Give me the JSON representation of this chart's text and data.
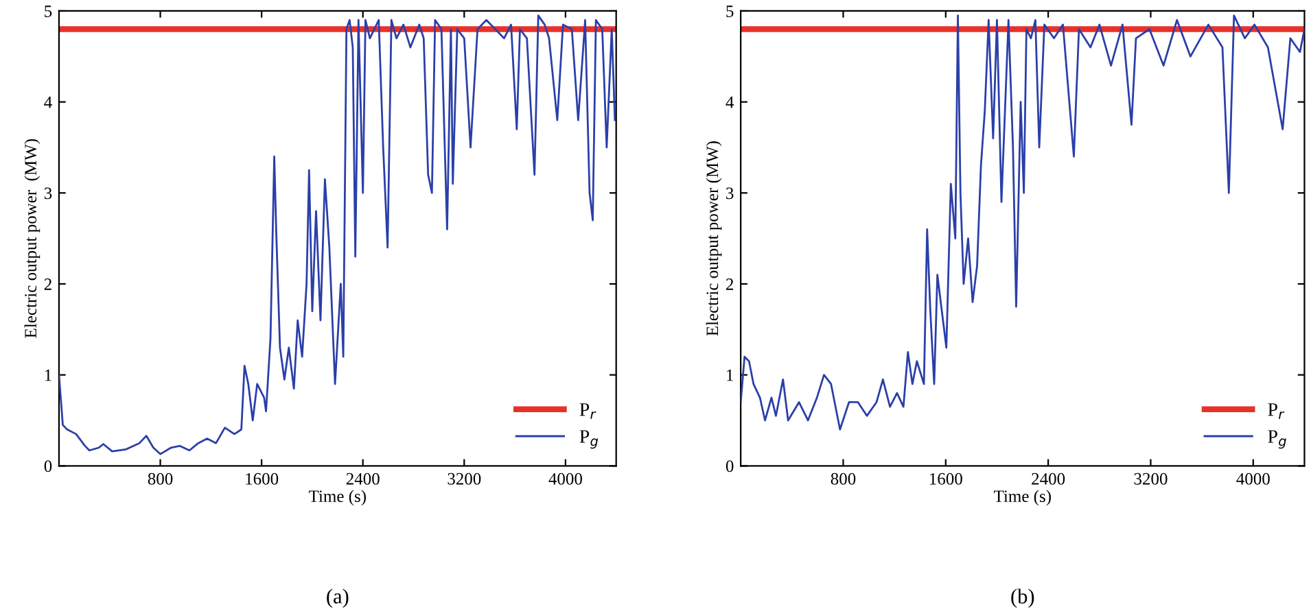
{
  "chart_data": [
    {
      "type": "line",
      "xlabel": "Time (s)",
      "ylabel": "Electric output power  (MW)",
      "annotations": [
        "(a)"
      ],
      "xlim": [
        0,
        4400
      ],
      "ylim": [
        0,
        5
      ],
      "xticks": [
        800,
        1600,
        2400,
        3200,
        4000
      ],
      "yticks": [
        0,
        1,
        2,
        3,
        4,
        5
      ],
      "grid": false,
      "legend": "bottom right",
      "marker": "none",
      "line_style": "solid",
      "series": [
        {
          "name": "P$_{r}$",
          "color": "#e8312a",
          "x": [
            0,
            4400
          ],
          "values": [
            4.8,
            4.8
          ]
        },
        {
          "name": "P$_{g}$",
          "color": "#2b3fa8",
          "x": [
            0,
            30,
            65,
            135,
            205,
            240,
            315,
            350,
            420,
            525,
            635,
            690,
            745,
            800,
            885,
            955,
            1030,
            1100,
            1170,
            1240,
            1310,
            1385,
            1440,
            1465,
            1495,
            1530,
            1565,
            1620,
            1635,
            1670,
            1700,
            1715,
            1745,
            1780,
            1815,
            1855,
            1885,
            1920,
            1955,
            1975,
            2000,
            2030,
            2065,
            2100,
            2135,
            2180,
            2225,
            2245,
            2270,
            2295,
            2320,
            2340,
            2365,
            2400,
            2420,
            2455,
            2525,
            2560,
            2595,
            2625,
            2665,
            2720,
            2775,
            2845,
            2880,
            2915,
            2945,
            2970,
            3020,
            3065,
            3095,
            3110,
            3145,
            3200,
            3250,
            3305,
            3375,
            3445,
            3515,
            3570,
            3615,
            3640,
            3695,
            3755,
            3785,
            3835,
            3870,
            3935,
            3980,
            4050,
            4100,
            4155,
            4190,
            4215,
            4240,
            4290,
            4325,
            4365,
            4390
          ],
          "values": [
            1.0,
            0.45,
            0.4,
            0.35,
            0.22,
            0.17,
            0.2,
            0.24,
            0.16,
            0.18,
            0.25,
            0.33,
            0.2,
            0.13,
            0.2,
            0.22,
            0.17,
            0.25,
            0.3,
            0.25,
            0.42,
            0.35,
            0.4,
            1.1,
            0.9,
            0.5,
            0.9,
            0.75,
            0.6,
            1.4,
            3.4,
            2.6,
            1.3,
            0.95,
            1.3,
            0.85,
            1.6,
            1.2,
            2.0,
            3.25,
            1.7,
            2.8,
            1.6,
            3.15,
            2.4,
            0.9,
            2.0,
            1.2,
            4.8,
            4.9,
            4.6,
            2.3,
            4.9,
            3.0,
            4.9,
            4.7,
            4.9,
            3.5,
            2.4,
            4.9,
            4.7,
            4.85,
            4.6,
            4.85,
            4.7,
            3.2,
            3.0,
            4.9,
            4.8,
            2.6,
            4.8,
            3.1,
            4.8,
            4.7,
            3.5,
            4.8,
            4.9,
            4.8,
            4.7,
            4.85,
            3.7,
            4.8,
            4.7,
            3.2,
            4.95,
            4.85,
            4.7,
            3.8,
            4.85,
            4.8,
            3.8,
            4.9,
            3.0,
            2.7,
            4.9,
            4.8,
            3.5,
            4.8,
            3.8
          ]
        }
      ]
    },
    {
      "type": "line",
      "xlabel": "Time (s)",
      "ylabel": "Electric output power (MW)",
      "annotations": [
        "(b)"
      ],
      "xlim": [
        0,
        4400
      ],
      "ylim": [
        0,
        5
      ],
      "xticks": [
        800,
        1600,
        2400,
        3200,
        4000
      ],
      "yticks": [
        0,
        1,
        2,
        3,
        4,
        5
      ],
      "grid": false,
      "legend": "bottom right",
      "marker": "none",
      "line_style": "solid",
      "series": [
        {
          "name": "P$_{r}$",
          "color": "#e8312a",
          "x": [
            0,
            4400
          ],
          "values": [
            4.8,
            4.8
          ]
        },
        {
          "name": "P$_{g}$",
          "color": "#2b3fa8",
          "x": [
            0,
            30,
            65,
            100,
            150,
            190,
            240,
            275,
            330,
            370,
            455,
            525,
            595,
            650,
            705,
            775,
            845,
            915,
            985,
            1060,
            1110,
            1165,
            1220,
            1270,
            1305,
            1340,
            1375,
            1430,
            1455,
            1480,
            1510,
            1535,
            1570,
            1605,
            1640,
            1675,
            1695,
            1715,
            1740,
            1775,
            1810,
            1845,
            1875,
            1905,
            1935,
            1970,
            2000,
            2035,
            2090,
            2125,
            2150,
            2185,
            2210,
            2230,
            2265,
            2300,
            2330,
            2370,
            2445,
            2515,
            2600,
            2640,
            2730,
            2800,
            2890,
            2980,
            3050,
            3085,
            3190,
            3300,
            3405,
            3510,
            3650,
            3760,
            3810,
            3850,
            3935,
            4010,
            4115,
            4230,
            4290,
            4365,
            4400
          ],
          "values": [
            0.7,
            1.2,
            1.15,
            0.9,
            0.75,
            0.5,
            0.75,
            0.55,
            0.95,
            0.5,
            0.7,
            0.5,
            0.75,
            1.0,
            0.9,
            0.4,
            0.7,
            0.7,
            0.55,
            0.7,
            0.95,
            0.65,
            0.8,
            0.65,
            1.25,
            0.9,
            1.15,
            0.9,
            2.6,
            1.7,
            0.9,
            2.1,
            1.7,
            1.3,
            3.1,
            2.5,
            4.95,
            3.0,
            2.0,
            2.5,
            1.8,
            2.2,
            3.3,
            3.9,
            4.9,
            3.6,
            4.9,
            2.9,
            4.9,
            3.5,
            1.75,
            4.0,
            3.0,
            4.8,
            4.7,
            4.9,
            3.5,
            4.85,
            4.7,
            4.85,
            3.4,
            4.8,
            4.6,
            4.85,
            4.4,
            4.85,
            3.75,
            4.7,
            4.8,
            4.4,
            4.9,
            4.5,
            4.85,
            4.6,
            3.0,
            4.95,
            4.7,
            4.85,
            4.6,
            3.7,
            4.7,
            4.55,
            4.8
          ]
        }
      ]
    }
  ]
}
